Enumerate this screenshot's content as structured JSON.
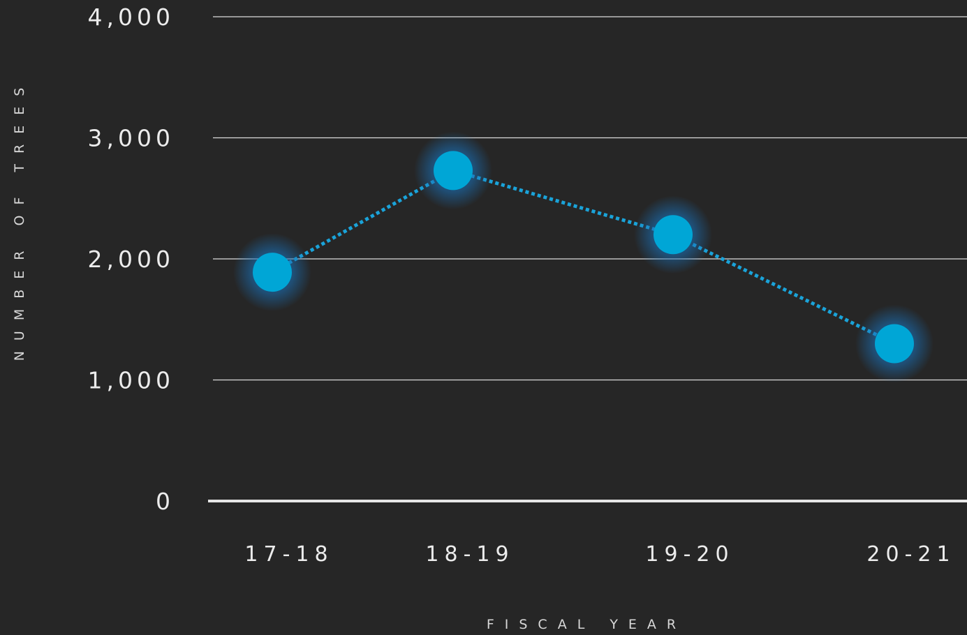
{
  "chart_data": {
    "type": "line",
    "title": "",
    "xlabel": "FISCAL YEAR",
    "ylabel": "NUMBER OF TREES",
    "categories": [
      "17-18",
      "18-19",
      "19-20",
      "20-21"
    ],
    "series": [
      {
        "values": [
          1890,
          2730,
          2200,
          1300
        ]
      }
    ],
    "ylim": [
      0,
      4000
    ],
    "yticks": [
      0,
      1000,
      2000,
      3000,
      4000
    ],
    "ytick_labels": [
      "0",
      "1,000",
      "2,000",
      "3,000",
      "4,000"
    ],
    "grid": true,
    "line_style": "dotted",
    "colors": {
      "background": "#262626",
      "grid": "#dcdcdc",
      "baseline": "#e6e6e6",
      "marker": "#00a6d6",
      "glow": "#1a6fb5",
      "line": "#1aa3d9"
    }
  }
}
